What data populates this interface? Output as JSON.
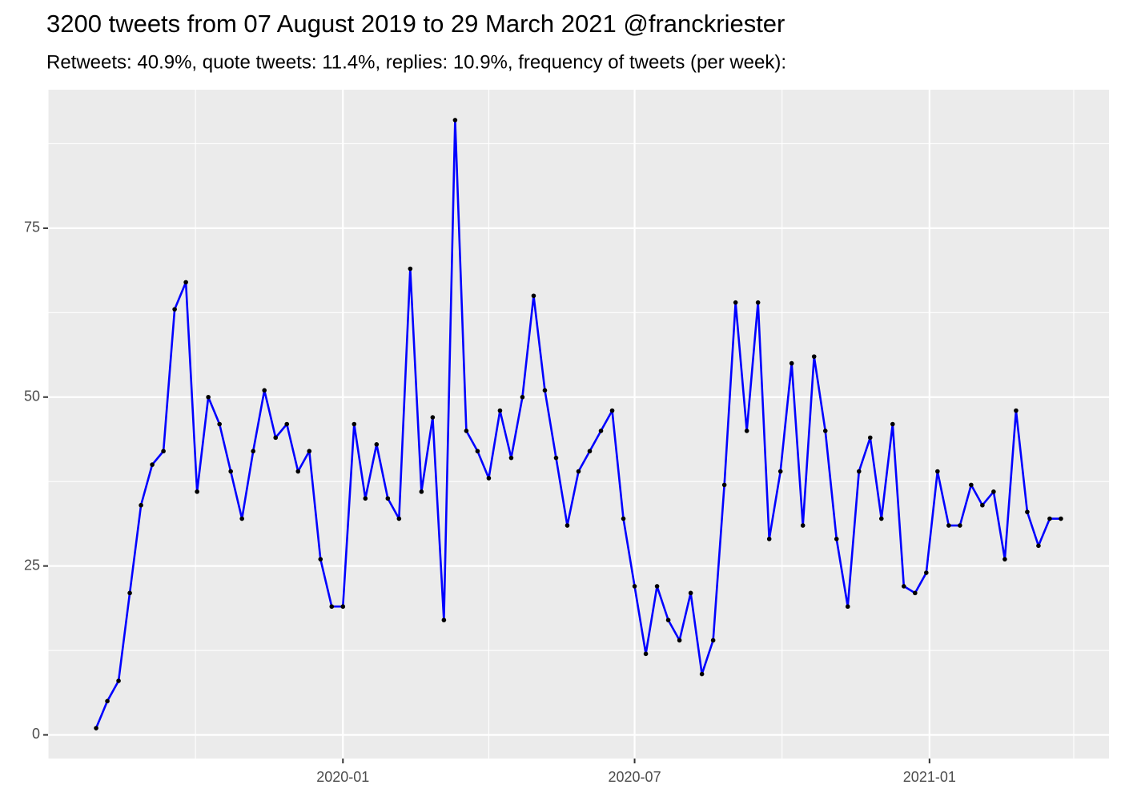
{
  "chart_data": {
    "type": "line",
    "title": "3200 tweets from 07 August 2019 to 29 March 2021 @franckriester",
    "subtitle": "Retweets: 40.9%, quote tweets: 11.4%, replies: 10.9%, frequency of tweets (per week):",
    "x": [
      "2019-07-31",
      "2019-08-07",
      "2019-08-14",
      "2019-08-21",
      "2019-08-28",
      "2019-09-04",
      "2019-09-11",
      "2019-09-18",
      "2019-09-25",
      "2019-10-02",
      "2019-10-09",
      "2019-10-16",
      "2019-10-23",
      "2019-10-30",
      "2019-11-06",
      "2019-11-13",
      "2019-11-20",
      "2019-11-27",
      "2019-12-04",
      "2019-12-11",
      "2019-12-18",
      "2019-12-25",
      "2020-01-01",
      "2020-01-08",
      "2020-01-15",
      "2020-01-22",
      "2020-01-29",
      "2020-02-05",
      "2020-02-12",
      "2020-02-19",
      "2020-02-26",
      "2020-03-04",
      "2020-03-11",
      "2020-03-18",
      "2020-03-25",
      "2020-04-01",
      "2020-04-08",
      "2020-04-15",
      "2020-04-22",
      "2020-04-29",
      "2020-05-06",
      "2020-05-13",
      "2020-05-20",
      "2020-05-27",
      "2020-06-03",
      "2020-06-10",
      "2020-06-17",
      "2020-06-24",
      "2020-07-01",
      "2020-07-08",
      "2020-07-15",
      "2020-07-22",
      "2020-07-29",
      "2020-08-05",
      "2020-08-12",
      "2020-08-19",
      "2020-08-26",
      "2020-09-02",
      "2020-09-09",
      "2020-09-16",
      "2020-09-23",
      "2020-09-30",
      "2020-10-07",
      "2020-10-14",
      "2020-10-21",
      "2020-10-28",
      "2020-11-04",
      "2020-11-11",
      "2020-11-18",
      "2020-11-25",
      "2020-12-02",
      "2020-12-09",
      "2020-12-16",
      "2020-12-23",
      "2020-12-30",
      "2021-01-06",
      "2021-01-13",
      "2021-01-20",
      "2021-01-27",
      "2021-02-03",
      "2021-02-10",
      "2021-02-17",
      "2021-02-24",
      "2021-03-03",
      "2021-03-10",
      "2021-03-17",
      "2021-03-24"
    ],
    "series": [
      {
        "color": "#0000ff",
        "point_color": "#000000",
        "values": [
          1,
          5,
          8,
          21,
          34,
          40,
          42,
          63,
          67,
          36,
          50,
          46,
          39,
          32,
          42,
          51,
          44,
          46,
          39,
          42,
          26,
          19,
          19,
          46,
          35,
          43,
          35,
          32,
          69,
          36,
          47,
          17,
          91,
          45,
          42,
          38,
          48,
          41,
          50,
          65,
          51,
          41,
          31,
          39,
          42,
          45,
          48,
          32,
          22,
          12,
          22,
          17,
          14,
          21,
          9,
          14,
          37,
          64,
          45,
          64,
          29,
          39,
          55,
          31,
          56,
          45,
          29,
          19,
          39,
          44,
          32,
          46,
          22,
          21,
          24,
          39,
          31,
          31,
          37,
          34,
          36,
          26,
          48,
          33,
          28,
          32,
          32
        ]
      }
    ],
    "xlim": [
      "2019-07-01",
      "2021-04-23"
    ],
    "xticks": [
      "2020-01",
      "2020-07",
      "2021-01"
    ],
    "xminor": [
      "2019-07",
      "2019-10",
      "2020-04",
      "2020-10",
      "2021-04"
    ],
    "ylim": [
      -3.5,
      95.5
    ],
    "yticks": [
      0,
      25,
      50,
      75
    ],
    "yminor": [
      12.5,
      37.5,
      62.5,
      87.5
    ],
    "grid": true
  }
}
